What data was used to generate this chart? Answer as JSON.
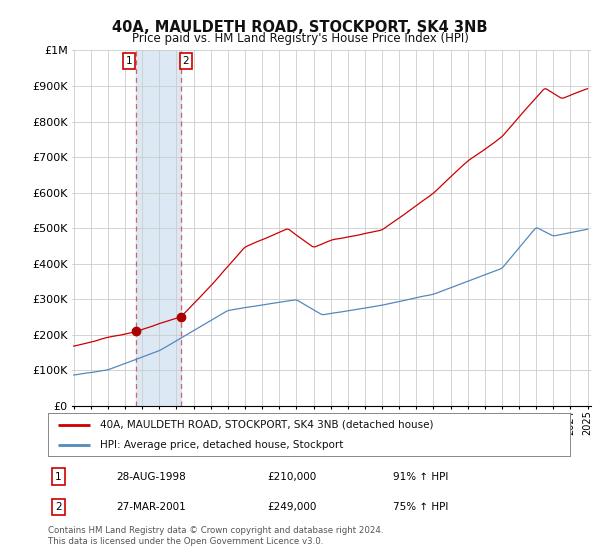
{
  "title": "40A, MAULDETH ROAD, STOCKPORT, SK4 3NB",
  "subtitle": "Price paid vs. HM Land Registry's House Price Index (HPI)",
  "legend_property": "40A, MAULDETH ROAD, STOCKPORT, SK4 3NB (detached house)",
  "legend_hpi": "HPI: Average price, detached house, Stockport",
  "footnote": "Contains HM Land Registry data © Crown copyright and database right 2024.\nThis data is licensed under the Open Government Licence v3.0.",
  "sale1_date": "28-AUG-1998",
  "sale1_price": "£210,000",
  "sale1_hpi": "91% ↑ HPI",
  "sale1_year": 1998.65,
  "sale1_value": 210000,
  "sale2_date": "27-MAR-2001",
  "sale2_price": "£249,000",
  "sale2_hpi": "75% ↑ HPI",
  "sale2_year": 2001.25,
  "sale2_value": 249000,
  "ylim": [
    0,
    1000000
  ],
  "yticks": [
    0,
    100000,
    200000,
    300000,
    400000,
    500000,
    600000,
    700000,
    800000,
    900000,
    1000000
  ],
  "ytick_labels": [
    "£0",
    "£100K",
    "£200K",
    "£300K",
    "£400K",
    "£500K",
    "£600K",
    "£700K",
    "£800K",
    "£900K",
    "£1M"
  ],
  "property_color": "#cc0000",
  "hpi_color": "#5588bb",
  "highlight_color": "#dde8f5",
  "sale_marker_color": "#aa0000",
  "background_color": "#ffffff",
  "grid_color": "#cccccc",
  "dashed_color": "#cc6666"
}
